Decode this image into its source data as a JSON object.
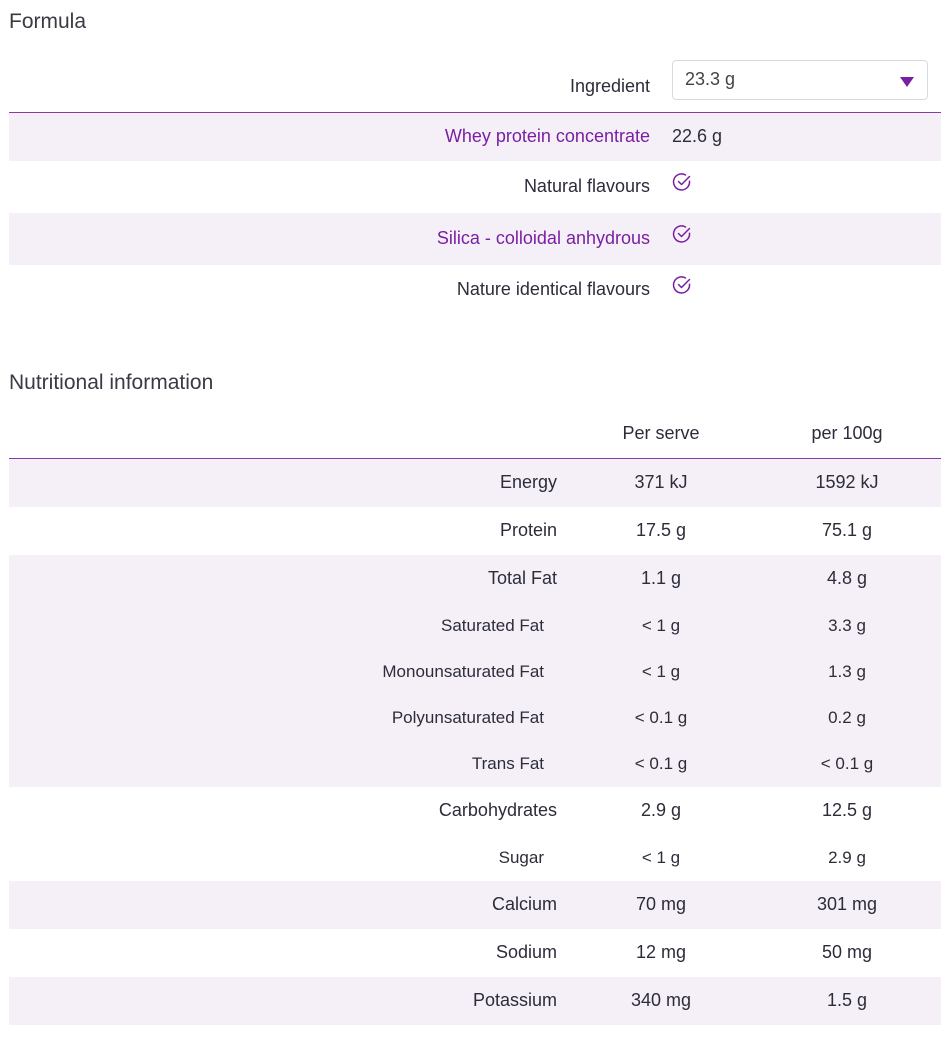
{
  "formula": {
    "title": "Formula",
    "column_header": "Ingredient",
    "selected": "23.3 g",
    "rows": [
      {
        "name": "Whey protein concentrate",
        "amount": "22.6 g"
      },
      {
        "name": "Natural flavours"
      },
      {
        "name": "Silica - colloidal anhydrous"
      },
      {
        "name": "Nature identical flavours"
      }
    ]
  },
  "nutrition": {
    "title": "Nutritional information",
    "columns": [
      "Per serve",
      "per 100g"
    ],
    "rows": [
      {
        "label": "Energy",
        "per_serve": "371 kJ",
        "per_100g": "1592 kJ"
      },
      {
        "label": "Protein",
        "per_serve": "17.5 g",
        "per_100g": "75.1 g"
      },
      {
        "label": "Total Fat",
        "per_serve": "1.1 g",
        "per_100g": "4.8 g",
        "subrows": [
          {
            "label": "Saturated Fat",
            "per_serve": "< 1 g",
            "per_100g": "3.3 g"
          },
          {
            "label": "Monounsaturated Fat",
            "per_serve": "< 1 g",
            "per_100g": "1.3 g"
          },
          {
            "label": "Polyunsaturated Fat",
            "per_serve": "< 0.1 g",
            "per_100g": "0.2 g"
          },
          {
            "label": "Trans Fat",
            "per_serve": "< 0.1 g",
            "per_100g": "< 0.1 g"
          }
        ]
      },
      {
        "label": "Carbohydrates",
        "per_serve": "2.9 g",
        "per_100g": "12.5 g",
        "subrows": [
          {
            "label": "Sugar",
            "per_serve": "< 1 g",
            "per_100g": "2.9 g"
          }
        ]
      },
      {
        "label": "Calcium",
        "per_serve": "70 mg",
        "per_100g": "301 mg"
      },
      {
        "label": "Sodium",
        "per_serve": "12 mg",
        "per_100g": "50 mg"
      },
      {
        "label": "Potassium",
        "per_serve": "340 mg",
        "per_100g": "1.5 g"
      }
    ]
  }
}
